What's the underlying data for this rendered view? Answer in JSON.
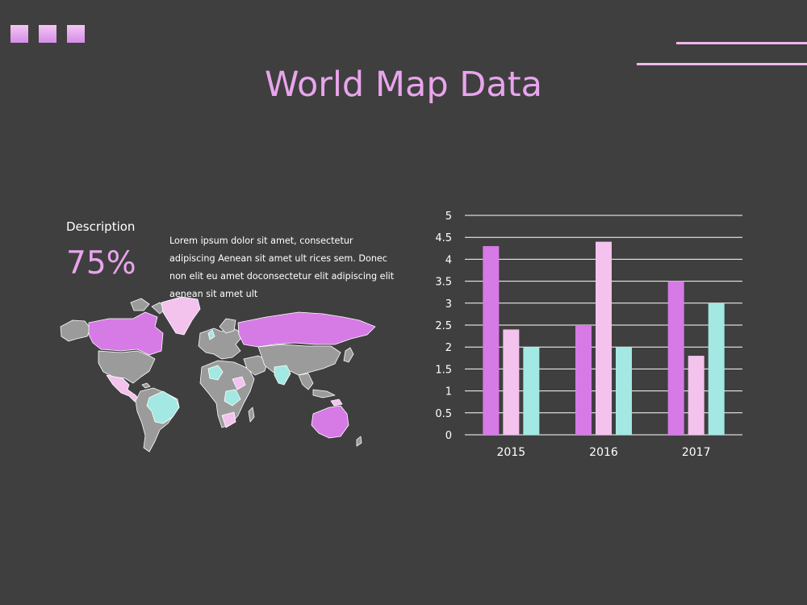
{
  "slide": {
    "title": "World Map Data",
    "description_label": "Description",
    "percent": "75%",
    "body": "Lorem ipsum dolor sit amet, consectetur adipiscing Aenean sit amet ult rices sem. Donec non elit eu amet doconsectetur elit adipiscing elit aenean sit amet ult"
  },
  "colors": {
    "background": "#3f3f3f",
    "accent": "#e8a5ec",
    "series1": "#d67ae6",
    "series2": "#f3c2ed",
    "series3": "#a3e8e2",
    "map_gray": "#9b9b9b"
  },
  "chart_data": {
    "type": "bar",
    "categories": [
      "2015",
      "2016",
      "2017"
    ],
    "series": [
      {
        "values": [
          4.3,
          2.5,
          3.5
        ],
        "color": "#d67ae6"
      },
      {
        "values": [
          2.4,
          4.4,
          1.8
        ],
        "color": "#f3c2ed"
      },
      {
        "values": [
          2.0,
          2.0,
          3.0
        ],
        "color": "#a3e8e2"
      }
    ],
    "ylim": [
      0,
      5
    ],
    "yticks": [
      "0",
      "0.5",
      "1",
      "1.5",
      "2",
      "2.5",
      "3",
      "3.5",
      "4",
      "4.5",
      "5"
    ],
    "grid": true,
    "legend": "none"
  }
}
